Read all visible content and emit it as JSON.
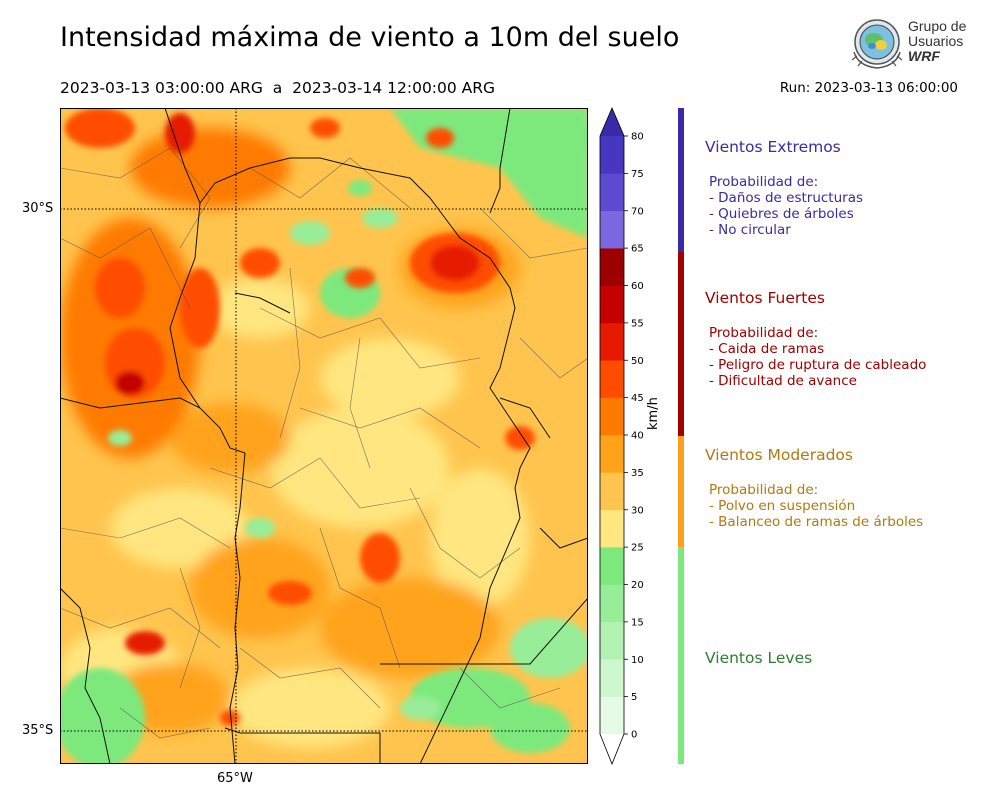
{
  "title": "Intensidad máxima de viento a 10m del suelo",
  "subtitle": "2023-03-13 03:00:00 ARG  a  2023-03-14 12:00:00 ARG",
  "run_label": "Run: 2023-03-13 06:00:00",
  "logo": {
    "line1": "Grupo de",
    "line2": "Usuarios",
    "line3": "WRF"
  },
  "map": {
    "lat_labels": [
      "30°S",
      "35°S"
    ],
    "lon_labels": [
      "65°W"
    ]
  },
  "colorbar": {
    "unit": "km/h",
    "ticks": [
      "0",
      "5",
      "10",
      "15",
      "20",
      "25",
      "30",
      "35",
      "40",
      "45",
      "50",
      "55",
      "60",
      "65",
      "70",
      "75",
      "80"
    ],
    "colors": [
      "#e6fbe6",
      "#cdf7cd",
      "#b3f2b3",
      "#98ed98",
      "#7de97d",
      "#ffe680",
      "#ffc44d",
      "#ffa31a",
      "#ff7a00",
      "#ff4d00",
      "#e61a00",
      "#c40000",
      "#9c0000",
      "#7b68e0",
      "#5d4ad0",
      "#4636c0"
    ],
    "extend_color": "#3a2aa8"
  },
  "categories": [
    {
      "title": "Vientos Extremos",
      "color": "#3a2aa8",
      "lines": [
        "Probabilidad de:",
        "- Daños de estructuras",
        "- Quiebres de árboles",
        "- No circular"
      ]
    },
    {
      "title": "Vientos Fuertes",
      "color": "#a00000",
      "lines": [
        "Probabilidad de:",
        "- Caida de ramas",
        "- Peligro de ruptura de cableado",
        "- Dificultad de avance"
      ]
    },
    {
      "title": "Vientos Moderados",
      "color": "#b07a10",
      "lines": [
        "Probabilidad de:",
        "- Polvo en suspensión",
        "- Balanceo de ramas de árboles"
      ]
    },
    {
      "title": "Vientos Leves",
      "color": "#2e7d32",
      "lines": []
    }
  ],
  "category_bar_colors": [
    "#3a2aa8",
    "#a00000",
    "#ff9f1a",
    "#7de97d"
  ]
}
